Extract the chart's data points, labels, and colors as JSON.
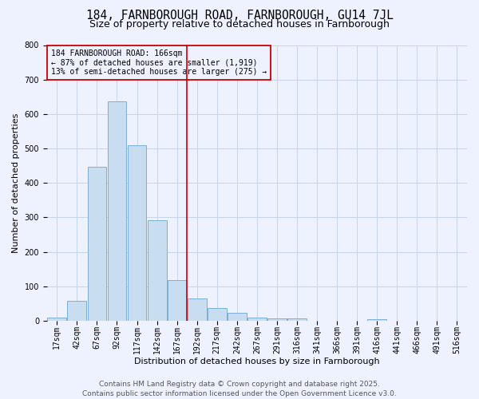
{
  "title": "184, FARNBOROUGH ROAD, FARNBOROUGH, GU14 7JL",
  "subtitle": "Size of property relative to detached houses in Farnborough",
  "xlabel": "Distribution of detached houses by size in Farnborough",
  "ylabel": "Number of detached properties",
  "categories": [
    "17sqm",
    "42sqm",
    "67sqm",
    "92sqm",
    "117sqm",
    "142sqm",
    "167sqm",
    "192sqm",
    "217sqm",
    "242sqm",
    "267sqm",
    "291sqm",
    "316sqm",
    "341sqm",
    "366sqm",
    "391sqm",
    "416sqm",
    "441sqm",
    "466sqm",
    "491sqm",
    "516sqm"
  ],
  "values": [
    10,
    58,
    447,
    636,
    510,
    292,
    118,
    65,
    37,
    22,
    10,
    7,
    6,
    0,
    0,
    0,
    4,
    0,
    0,
    0,
    0
  ],
  "bar_color": "#c8ddef",
  "bar_edge_color": "#7aafd4",
  "vline_x_index": 6,
  "vline_color": "#cc0000",
  "annotation_line1": "184 FARNBOROUGH ROAD: 166sqm",
  "annotation_line2": "← 87% of detached houses are smaller (1,919)",
  "annotation_line3": "13% of semi-detached houses are larger (275) →",
  "annotation_box_color": "#cc0000",
  "ylim": [
    0,
    800
  ],
  "yticks": [
    0,
    100,
    200,
    300,
    400,
    500,
    600,
    700,
    800
  ],
  "footer_line1": "Contains HM Land Registry data © Crown copyright and database right 2025.",
  "footer_line2": "Contains public sector information licensed under the Open Government Licence v3.0.",
  "bg_color": "#eef2ff",
  "grid_color": "#c8d4e8",
  "title_fontsize": 10.5,
  "subtitle_fontsize": 9,
  "axis_label_fontsize": 8,
  "tick_fontsize": 7,
  "annotation_fontsize": 7,
  "footer_fontsize": 6.5
}
